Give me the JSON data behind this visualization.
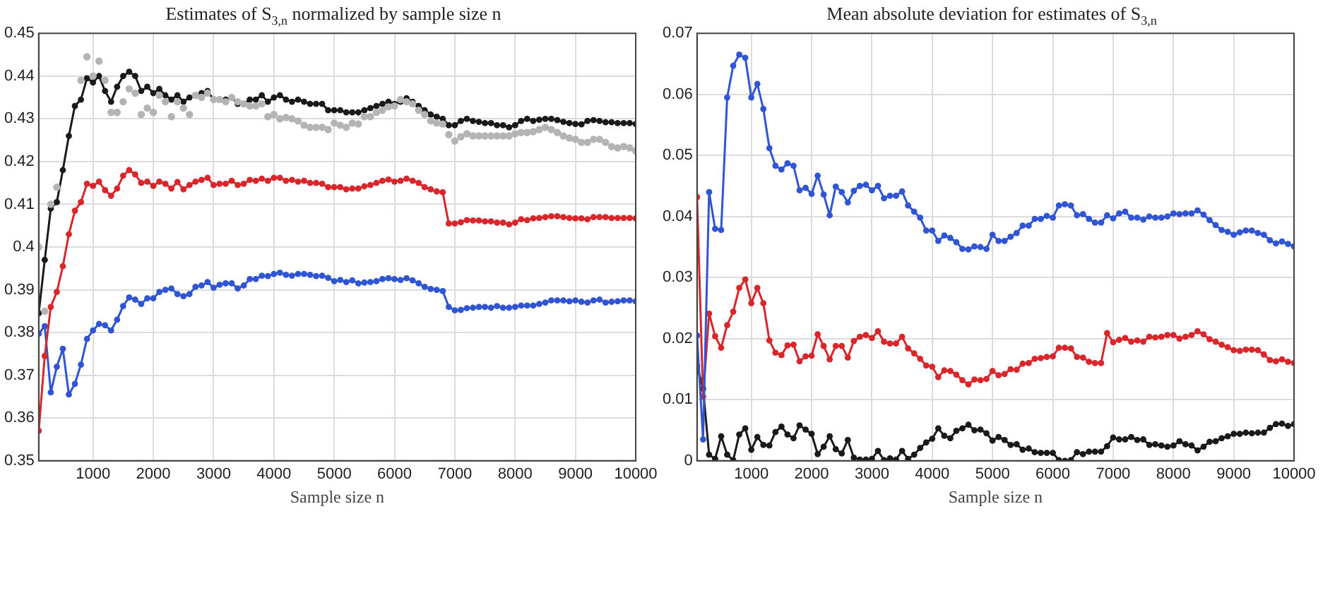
{
  "chart_data": [
    {
      "type": "line",
      "title": "Estimates of S$_{3,n}$ normalized by sample size n",
      "xlabel": "Sample size n",
      "marker": "circle",
      "grid": true,
      "legend": false,
      "xlim": [
        100,
        10000
      ],
      "xticks": [
        1000,
        2000,
        3000,
        4000,
        5000,
        6000,
        7000,
        8000,
        9000,
        10000
      ],
      "ylim": [
        0.35,
        0.45
      ],
      "yticks": [
        0.35,
        0.36,
        0.37,
        0.38,
        0.39,
        0.4,
        0.41,
        0.42,
        0.43,
        0.44,
        0.45
      ],
      "x": [
        100,
        200,
        300,
        400,
        500,
        600,
        700,
        800,
        900,
        1000,
        1100,
        1200,
        1300,
        1400,
        1500,
        1600,
        1700,
        1800,
        1900,
        2000,
        2100,
        2200,
        2300,
        2400,
        2500,
        2600,
        2700,
        2800,
        2900,
        3000,
        3100,
        3200,
        3300,
        3400,
        3500,
        3600,
        3700,
        3800,
        3900,
        4000,
        4100,
        4200,
        4300,
        4400,
        4500,
        4600,
        4700,
        4800,
        4900,
        5000,
        5100,
        5200,
        5300,
        5400,
        5500,
        5600,
        5700,
        5800,
        5900,
        6000,
        6100,
        6200,
        6300,
        6400,
        6500,
        6600,
        6700,
        6800,
        6900,
        7000,
        7100,
        7200,
        7300,
        7400,
        7500,
        7600,
        7700,
        7800,
        7900,
        8000,
        8100,
        8200,
        8300,
        8400,
        8500,
        8600,
        8700,
        8800,
        8900,
        9000,
        9100,
        9200,
        9300,
        9400,
        9500,
        9600,
        9700,
        9800,
        9900,
        10000
      ],
      "series": [
        {
          "type": "scatter",
          "color": "#b4b4b4",
          "values": [
            0.4,
            0.385,
            0.41,
            0.414,
            null,
            null,
            null,
            0.439,
            0.4445,
            0.44,
            0.4435,
            0.439,
            0.4315,
            0.4315,
            0.434,
            0.437,
            0.436,
            0.431,
            0.4325,
            0.4315,
            0.4355,
            0.434,
            0.4305,
            0.434,
            0.4325,
            0.431,
            0.4355,
            0.435,
            0.436,
            0.4345,
            0.4345,
            0.434,
            0.435,
            0.434,
            0.4335,
            0.433,
            0.433,
            0.4335,
            0.4305,
            0.431,
            0.43,
            0.4303,
            0.43,
            0.4295,
            0.4285,
            0.428,
            0.428,
            0.428,
            0.4275,
            0.429,
            0.4285,
            0.428,
            0.429,
            0.4288,
            0.4305,
            0.4305,
            0.4315,
            0.432,
            0.4328,
            0.433,
            0.4345,
            0.434,
            0.4335,
            0.432,
            0.431,
            0.4295,
            0.429,
            0.4288,
            0.4263,
            0.4248,
            0.4258,
            0.4265,
            0.426,
            0.426,
            0.426,
            0.426,
            0.426,
            0.426,
            0.426,
            0.4265,
            0.4268,
            0.4268,
            0.427,
            0.4275,
            0.428,
            0.4275,
            0.4268,
            0.426,
            0.4255,
            0.4252,
            0.4245,
            0.4245,
            0.4252,
            0.4252,
            0.4245,
            0.4235,
            0.4232,
            0.4235,
            0.4232,
            0.4225
          ]
        },
        {
          "color": "#1a1a1a",
          "values": [
            0.3845,
            0.397,
            0.409,
            0.4105,
            0.418,
            0.426,
            0.433,
            0.4345,
            0.4395,
            0.4385,
            0.44,
            0.4365,
            0.434,
            0.4375,
            0.44,
            0.441,
            0.44,
            0.4365,
            0.4375,
            0.436,
            0.437,
            0.4355,
            0.4345,
            0.4355,
            0.434,
            0.435,
            0.4355,
            0.436,
            0.4365,
            0.4345,
            0.4345,
            0.4345,
            0.435,
            0.4335,
            0.4335,
            0.4345,
            0.4345,
            0.4355,
            0.434,
            0.435,
            0.4355,
            0.4345,
            0.434,
            0.4345,
            0.434,
            0.4335,
            0.4335,
            0.4335,
            0.432,
            0.432,
            0.432,
            0.4315,
            0.4315,
            0.4315,
            0.432,
            0.4325,
            0.433,
            0.4335,
            0.434,
            0.4335,
            0.434,
            0.4348,
            0.434,
            0.433,
            0.432,
            0.431,
            0.4305,
            0.43,
            0.4285,
            0.4285,
            0.4295,
            0.43,
            0.4295,
            0.4293,
            0.429,
            0.429,
            0.4285,
            0.4285,
            0.428,
            0.4285,
            0.4295,
            0.43,
            0.4295,
            0.4298,
            0.43,
            0.43,
            0.4297,
            0.4293,
            0.429,
            0.4288,
            0.4287,
            0.4295,
            0.4297,
            0.4295,
            0.4292,
            0.4292,
            0.429,
            0.429,
            0.429,
            0.4288
          ]
        },
        {
          "color": "#d9262b",
          "values": [
            0.357,
            0.3745,
            0.386,
            0.3895,
            0.3955,
            0.403,
            0.4085,
            0.4105,
            0.4148,
            0.4143,
            0.4153,
            0.4133,
            0.412,
            0.4137,
            0.4167,
            0.418,
            0.417,
            0.415,
            0.4153,
            0.4143,
            0.4153,
            0.4148,
            0.4137,
            0.4152,
            0.4135,
            0.4145,
            0.4153,
            0.4157,
            0.4162,
            0.4145,
            0.4148,
            0.4148,
            0.4155,
            0.4145,
            0.4148,
            0.4157,
            0.4155,
            0.416,
            0.4155,
            0.4162,
            0.4162,
            0.4155,
            0.4157,
            0.4153,
            0.4155,
            0.415,
            0.415,
            0.4148,
            0.414,
            0.414,
            0.414,
            0.4135,
            0.4137,
            0.4137,
            0.4142,
            0.4145,
            0.415,
            0.4155,
            0.4158,
            0.4153,
            0.4155,
            0.416,
            0.4155,
            0.415,
            0.414,
            0.4135,
            0.413,
            0.4128,
            0.4055,
            0.4055,
            0.4058,
            0.4063,
            0.4062,
            0.4062,
            0.406,
            0.406,
            0.4057,
            0.4057,
            0.4053,
            0.4057,
            0.4065,
            0.4063,
            0.4067,
            0.4068,
            0.407,
            0.4072,
            0.4072,
            0.407,
            0.4068,
            0.4067,
            0.4067,
            0.4065,
            0.407,
            0.407,
            0.407,
            0.4068,
            0.4068,
            0.4068,
            0.4068,
            0.4067
          ]
        },
        {
          "color": "#2f55d4",
          "values": [
            0.3797,
            0.3815,
            0.366,
            0.372,
            0.3762,
            0.3655,
            0.368,
            0.3725,
            0.3785,
            0.3805,
            0.382,
            0.3817,
            0.3805,
            0.383,
            0.3862,
            0.3882,
            0.3877,
            0.3867,
            0.388,
            0.388,
            0.3895,
            0.39,
            0.3903,
            0.389,
            0.3885,
            0.389,
            0.3907,
            0.391,
            0.3918,
            0.3905,
            0.3912,
            0.3915,
            0.3915,
            0.3903,
            0.391,
            0.3925,
            0.3925,
            0.3933,
            0.3932,
            0.3937,
            0.394,
            0.3935,
            0.3933,
            0.3937,
            0.3937,
            0.3935,
            0.3932,
            0.3933,
            0.3928,
            0.392,
            0.3923,
            0.3918,
            0.3922,
            0.3915,
            0.3917,
            0.3918,
            0.392,
            0.3925,
            0.3927,
            0.3925,
            0.3923,
            0.3927,
            0.3922,
            0.3915,
            0.3907,
            0.3902,
            0.39,
            0.3897,
            0.386,
            0.3852,
            0.3853,
            0.3857,
            0.3858,
            0.386,
            0.386,
            0.3858,
            0.3862,
            0.3858,
            0.3858,
            0.386,
            0.3863,
            0.3863,
            0.3863,
            0.3867,
            0.387,
            0.3875,
            0.3875,
            0.3875,
            0.3873,
            0.3875,
            0.3872,
            0.387,
            0.3875,
            0.3877,
            0.387,
            0.3872,
            0.3873,
            0.3875,
            0.3875,
            0.3873
          ]
        }
      ]
    },
    {
      "type": "line",
      "title": "Mean absolute deviation for estimates of S$_{3,n}$",
      "xlabel": "Sample size n",
      "marker": "circle",
      "grid": true,
      "legend": false,
      "xlim": [
        100,
        10000
      ],
      "xticks": [
        1000,
        2000,
        3000,
        4000,
        5000,
        6000,
        7000,
        8000,
        9000,
        10000
      ],
      "ylim": [
        0,
        0.07
      ],
      "yticks": [
        0,
        0.01,
        0.02,
        0.03,
        0.04,
        0.05,
        0.06,
        0.07
      ],
      "x": [
        100,
        200,
        300,
        400,
        500,
        600,
        700,
        800,
        900,
        1000,
        1100,
        1200,
        1300,
        1400,
        1500,
        1600,
        1700,
        1800,
        1900,
        2000,
        2100,
        2200,
        2300,
        2400,
        2500,
        2600,
        2700,
        2800,
        2900,
        3000,
        3100,
        3200,
        3300,
        3400,
        3500,
        3600,
        3700,
        3800,
        3900,
        4000,
        4100,
        4200,
        4300,
        4400,
        4500,
        4600,
        4700,
        4800,
        4900,
        5000,
        5100,
        5200,
        5300,
        5400,
        5500,
        5600,
        5700,
        5800,
        5900,
        6000,
        6100,
        6200,
        6300,
        6400,
        6500,
        6600,
        6700,
        6800,
        6900,
        7000,
        7100,
        7200,
        7300,
        7400,
        7500,
        7600,
        7700,
        7800,
        7900,
        8000,
        8100,
        8200,
        8300,
        8400,
        8500,
        8600,
        8700,
        8800,
        8900,
        9000,
        9100,
        9200,
        9300,
        9400,
        9500,
        9600,
        9700,
        9800,
        9900,
        10000
      ],
      "series": [
        {
          "color": "#2f55d4",
          "values": [
            0.0205,
            0.0035,
            0.044,
            0.038,
            0.0378,
            0.0595,
            0.0647,
            0.0665,
            0.066,
            0.0595,
            0.0617,
            0.0576,
            0.0512,
            0.0483,
            0.0477,
            0.0487,
            0.0483,
            0.0443,
            0.0447,
            0.0437,
            0.0467,
            0.0436,
            0.0402,
            0.0449,
            0.044,
            0.0423,
            0.0442,
            0.045,
            0.0452,
            0.0443,
            0.045,
            0.043,
            0.0434,
            0.0434,
            0.0441,
            0.0418,
            0.0408,
            0.0398,
            0.0377,
            0.0377,
            0.036,
            0.0369,
            0.0365,
            0.0358,
            0.0347,
            0.0346,
            0.0351,
            0.035,
            0.0347,
            0.037,
            0.036,
            0.036,
            0.0367,
            0.0373,
            0.0385,
            0.0385,
            0.0396,
            0.0396,
            0.0401,
            0.0398,
            0.0418,
            0.042,
            0.0418,
            0.0402,
            0.0404,
            0.0396,
            0.039,
            0.039,
            0.0402,
            0.0397,
            0.0405,
            0.0408,
            0.0398,
            0.0398,
            0.0395,
            0.04,
            0.0398,
            0.0398,
            0.04,
            0.0405,
            0.0404,
            0.0405,
            0.0405,
            0.041,
            0.0403,
            0.0394,
            0.0386,
            0.0378,
            0.0375,
            0.037,
            0.0374,
            0.0377,
            0.0377,
            0.0373,
            0.037,
            0.0361,
            0.0356,
            0.0359,
            0.0355,
            0.0351
          ]
        },
        {
          "color": "#d9262b",
          "values": [
            0.0432,
            0.0105,
            0.0241,
            0.0204,
            0.0185,
            0.0222,
            0.0244,
            0.0283,
            0.0297,
            0.0258,
            0.0283,
            0.0258,
            0.0197,
            0.0177,
            0.0173,
            0.0189,
            0.019,
            0.0163,
            0.0171,
            0.0172,
            0.0207,
            0.0188,
            0.0166,
            0.0188,
            0.0188,
            0.0169,
            0.0196,
            0.0203,
            0.0206,
            0.0201,
            0.0212,
            0.0195,
            0.0192,
            0.0192,
            0.0203,
            0.0184,
            0.0176,
            0.0167,
            0.0156,
            0.0154,
            0.0137,
            0.0148,
            0.0147,
            0.0141,
            0.0132,
            0.0125,
            0.0133,
            0.0132,
            0.0134,
            0.0147,
            0.014,
            0.0142,
            0.015,
            0.0149,
            0.0159,
            0.016,
            0.0167,
            0.0168,
            0.017,
            0.0171,
            0.0185,
            0.0185,
            0.0184,
            0.017,
            0.0169,
            0.0162,
            0.016,
            0.016,
            0.0209,
            0.0194,
            0.0198,
            0.0201,
            0.0195,
            0.0197,
            0.0195,
            0.0203,
            0.0202,
            0.0203,
            0.0206,
            0.0206,
            0.02,
            0.0203,
            0.0206,
            0.0212,
            0.0207,
            0.0199,
            0.0195,
            0.019,
            0.0186,
            0.0181,
            0.018,
            0.0182,
            0.0182,
            0.0181,
            0.0174,
            0.0165,
            0.0163,
            0.0166,
            0.0162,
            0.016
          ]
        },
        {
          "color": "#1a1a1a",
          "values": [
            0.0155,
            0.0118,
            0.001,
            0.0003,
            0.004,
            0.001,
            0.0001,
            0.0043,
            0.0053,
            0.0018,
            0.0039,
            0.0026,
            0.0025,
            0.0047,
            0.0056,
            0.0043,
            0.0037,
            0.0058,
            0.0051,
            0.0044,
            0.0011,
            0.0023,
            0.004,
            0.0019,
            0.0012,
            0.0034,
            0.0005,
            0.0002,
            0.0002,
            0.0003,
            0.0016,
            0.0001,
            0.0004,
            0.0002,
            0.0016,
            0.0003,
            0.001,
            0.0021,
            0.003,
            0.0036,
            0.0053,
            0.0041,
            0.0037,
            0.0049,
            0.0053,
            0.0059,
            0.005,
            0.0051,
            0.0045,
            0.0033,
            0.0039,
            0.0034,
            0.0026,
            0.0027,
            0.0018,
            0.002,
            0.0014,
            0.0013,
            0.0013,
            0.0013,
            0.0001,
            0,
            0.0001,
            0.0014,
            0.0011,
            0.0015,
            0.0015,
            0.0015,
            0.0024,
            0.0038,
            0.0035,
            0.0035,
            0.0039,
            0.0034,
            0.0035,
            0.0026,
            0.0027,
            0.0025,
            0.0023,
            0.0025,
            0.0032,
            0.0027,
            0.0025,
            0.0017,
            0.0023,
            0.0031,
            0.0032,
            0.0037,
            0.004,
            0.0044,
            0.0044,
            0.0046,
            0.0045,
            0.0046,
            0.0046,
            0.0054,
            0.006,
            0.0061,
            0.0057,
            0.006
          ]
        }
      ]
    }
  ]
}
